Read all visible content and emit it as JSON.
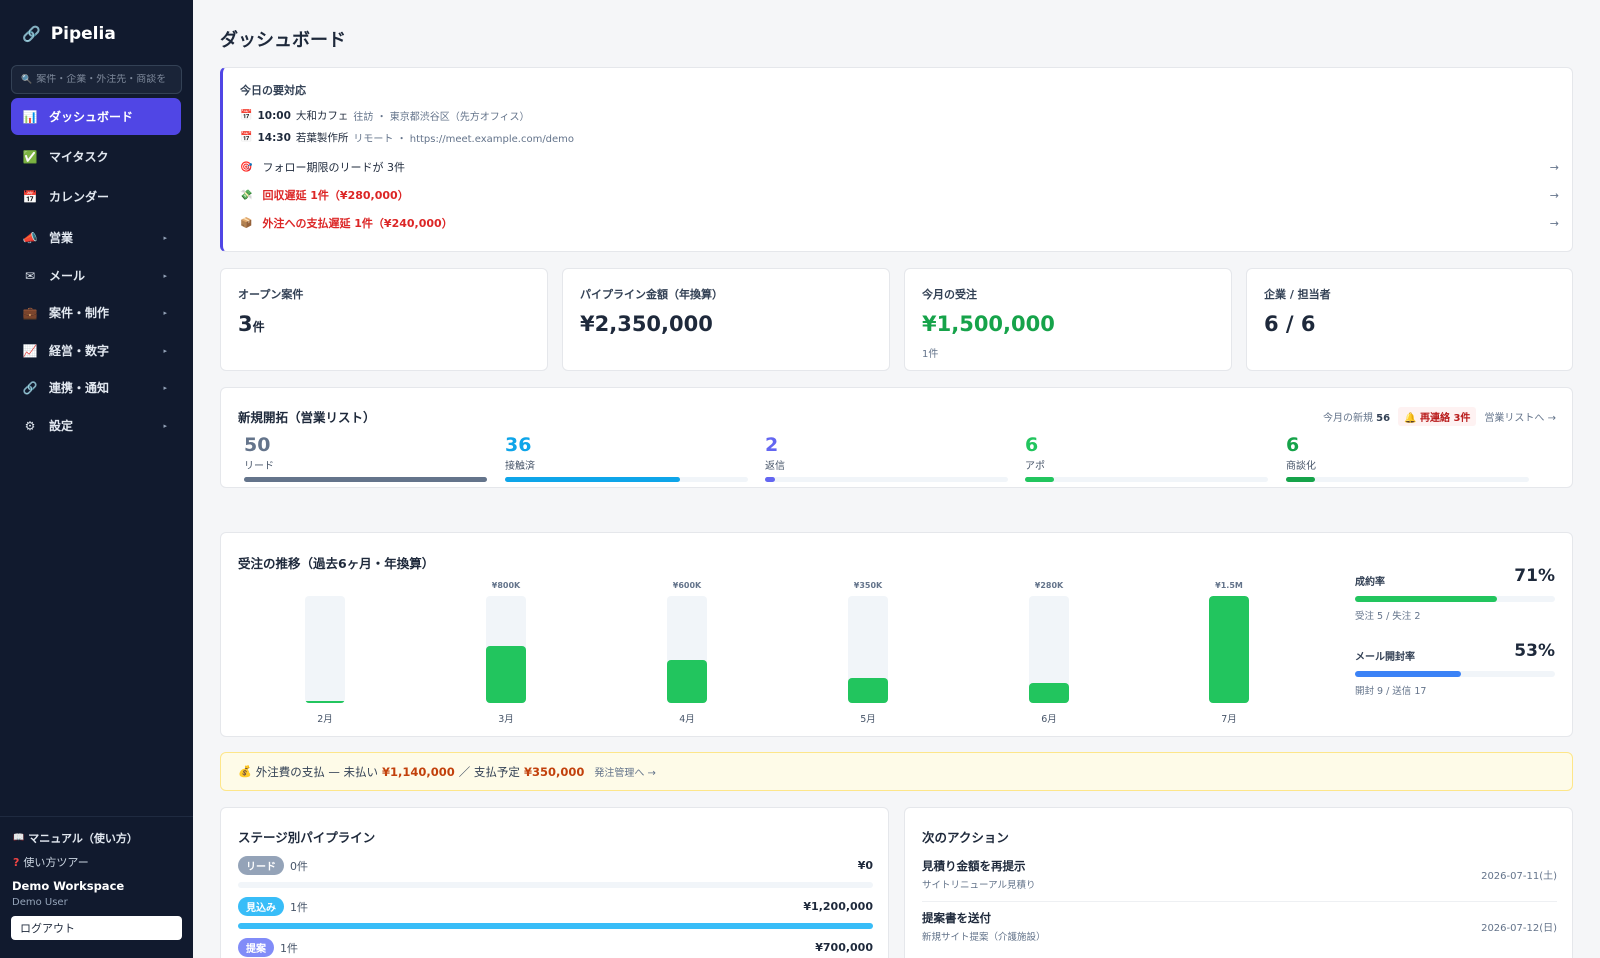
{
  "app": {
    "name": "Pipelia",
    "logo_icon": "link-icon"
  },
  "search": {
    "placeholder": "案件・企業・外注先・商談を"
  },
  "nav": [
    {
      "label": "ダッシュボード",
      "icon": "chart-icon",
      "active": true
    },
    {
      "label": "マイタスク",
      "icon": "check-icon"
    },
    {
      "label": "カレンダー",
      "icon": "calendar-icon"
    },
    {
      "label": "営業",
      "icon": "megaphone-icon",
      "caret": "▸"
    },
    {
      "label": "メール",
      "icon": "mail-icon",
      "caret": "▸"
    },
    {
      "label": "案件・制作",
      "icon": "briefcase-icon",
      "caret": "▸"
    },
    {
      "label": "経営・数字",
      "icon": "trend-icon",
      "caret": "▸"
    },
    {
      "label": "連携・通知",
      "icon": "link-icon",
      "caret": "▸"
    },
    {
      "label": "設定",
      "icon": "gear-icon",
      "caret": "▸"
    }
  ],
  "sidebar_footer": {
    "manual": "マニュアル（使い方）",
    "tour": "使い方ツアー",
    "workspace": "Demo Workspace",
    "user": "Demo User",
    "logout": "ログアウト"
  },
  "page_title": "ダッシュボード",
  "today": {
    "title": "今日の要対応",
    "appointments": [
      {
        "time": "10:00",
        "company": "大和カフェ",
        "detail": "往訪 ・ 東京都渋谷区（先方オフィス）"
      },
      {
        "time": "14:30",
        "company": "若葉製作所",
        "detail": "リモート ・ https://meet.example.com/demo"
      }
    ],
    "alerts": [
      {
        "text": "フォロー期限のリードが 3件",
        "icon": "target-icon",
        "urgent": false,
        "arrow": "→"
      },
      {
        "text": "回収遅延 1件（¥280,000）",
        "icon": "money-icon",
        "urgent": true,
        "arrow": "→"
      },
      {
        "text": "外注への支払遅延 1件（¥240,000）",
        "icon": "package-icon",
        "urgent": true,
        "arrow": "→"
      }
    ]
  },
  "stats": [
    {
      "label": "オープン案件",
      "value": "3",
      "unit": "件",
      "sub": "",
      "color": "#1e293b"
    },
    {
      "label": "パイプライン金額（年換算）",
      "value": "¥2,350,000",
      "unit": "",
      "sub": "",
      "color": "#1e293b"
    },
    {
      "label": "今月の受注",
      "value": "¥1,500,000",
      "unit": "",
      "sub": "1件",
      "color": "#16a34a"
    },
    {
      "label": "企業 / 担当者",
      "value": "6 / 6",
      "unit": "",
      "sub": "",
      "color": "#1e293b"
    }
  ],
  "prospecting": {
    "title": "新規開拓（営業リスト）",
    "month_new_label": "今月の新規",
    "month_new_value": "56",
    "recall": "🔔 再連絡 3件",
    "link": "営業リストへ →",
    "stages": [
      {
        "value": "50",
        "label": "リード",
        "color": "#64748b",
        "fill": 1.0
      },
      {
        "value": "36",
        "label": "接触済",
        "color": "#0ea5e9",
        "fill": 0.72
      },
      {
        "value": "2",
        "label": "返信",
        "color": "#6366f1",
        "fill": 0.04
      },
      {
        "value": "6",
        "label": "アポ",
        "color": "#22c55e",
        "fill": 0.12
      },
      {
        "value": "6",
        "label": "商談化",
        "color": "#16a34a",
        "fill": 0.12
      }
    ]
  },
  "trend": {
    "title": "受注の推移（過去6ヶ月・年換算）",
    "bars": [
      {
        "month": "2月",
        "label": "",
        "value": 0
      },
      {
        "month": "3月",
        "label": "¥800K",
        "value": 800
      },
      {
        "month": "4月",
        "label": "¥600K",
        "value": 600
      },
      {
        "month": "5月",
        "label": "¥350K",
        "value": 350
      },
      {
        "month": "6月",
        "label": "¥280K",
        "value": 280
      },
      {
        "month": "7月",
        "label": "¥1.5M",
        "value": 1500
      }
    ],
    "max": 1500,
    "rates": [
      {
        "label": "成約率",
        "value": "71%",
        "fraction": 0.71,
        "sub": "受注 5 / 失注 2",
        "color": "#22c55e"
      },
      {
        "label": "メール開封率",
        "value": "53%",
        "fraction": 0.53,
        "sub": "開封 9 / 送信 17",
        "color": "#3b82f6"
      }
    ]
  },
  "banner": {
    "icon": "money-bag-icon",
    "prefix": "外注費の支払 — 未払い",
    "unpaid": "¥1,140,000",
    "mid": "／ 支払予定",
    "scheduled": "¥350,000",
    "link": "発注管理へ →"
  },
  "stages": {
    "title": "ステージ別パイプライン",
    "rows": [
      {
        "name": "リード",
        "count": "0件",
        "amount": "¥0",
        "color": "#94a3b8",
        "fill": 0
      },
      {
        "name": "見込み",
        "count": "1件",
        "amount": "¥1,200,000",
        "color": "#38bdf8",
        "fill": 1.0
      },
      {
        "name": "提案",
        "count": "1件",
        "amount": "¥700,000",
        "color": "#818cf8",
        "fill": 0.58
      }
    ]
  },
  "next_actions": {
    "title": "次のアクション",
    "items": [
      {
        "title": "見積り金額を再提示",
        "sub": "サイトリニューアル見積り",
        "date": "2026-07-11(土)"
      },
      {
        "title": "提案書を送付",
        "sub": "新規サイト提案（介護施設）",
        "date": "2026-07-12(日)"
      }
    ]
  }
}
